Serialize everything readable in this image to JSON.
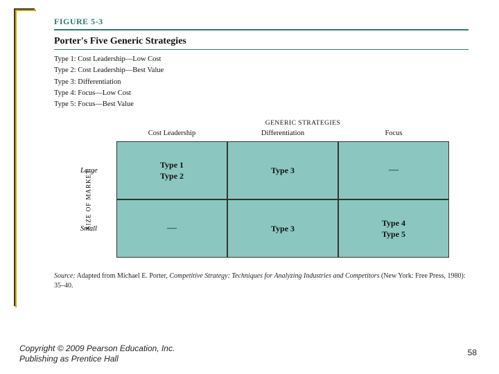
{
  "figure": {
    "label": "FIGURE 5-3",
    "title": "Porter's Five Generic Strategies",
    "types": [
      "Type 1: Cost Leadership—Low Cost",
      "Type 2: Cost Leadership—Best Value",
      "Type 3: Differentiation",
      "Type 4: Focus—Low Cost",
      "Type 5: Focus—Best Value"
    ],
    "topAxisLabel": "GENERIC STRATEGIES",
    "columns": [
      "Cost Leadership",
      "Differentiation",
      "Focus"
    ],
    "yAxisLabel": "SIZE OF MARKET",
    "rows": [
      {
        "label": "Large",
        "cells": [
          {
            "lines": [
              "Type 1",
              "Type 2"
            ],
            "dash": false
          },
          {
            "lines": [
              "Type 3"
            ],
            "dash": false
          },
          {
            "lines": [
              "—"
            ],
            "dash": true
          }
        ]
      },
      {
        "label": "Small",
        "cells": [
          {
            "lines": [
              "—"
            ],
            "dash": true
          },
          {
            "lines": [
              "Type 3"
            ],
            "dash": false
          },
          {
            "lines": [
              "Type 4",
              "Type 5"
            ],
            "dash": false
          }
        ]
      }
    ],
    "source_prefix": "Source:",
    "source_text_a": " Adapted from Michael E. Porter, ",
    "source_em": "Competitive Strategy: Techniques for Analyzing Industries and Competitors",
    "source_text_b": " (New York: Free Press, 1980): 35–40."
  },
  "footer": {
    "copyright_l1": "Copyright © 2009 Pearson Education, Inc.",
    "copyright_l2": "Publishing as Prentice Hall",
    "page": "58"
  },
  "style": {
    "cell_bg": "#8bc7c0",
    "cell_border": "#333333",
    "accent": "#2a7a72"
  }
}
